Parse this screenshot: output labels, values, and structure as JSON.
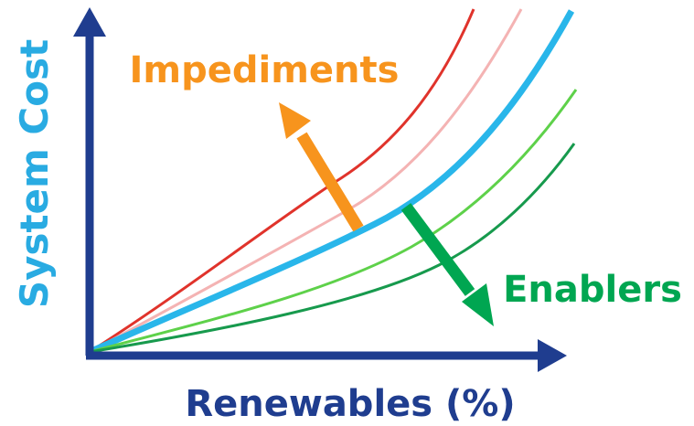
{
  "labels": {
    "y_axis": "System Cost",
    "x_axis": "Renewables (%)",
    "impediments": "Impediments",
    "enablers": "Enablers"
  },
  "colors": {
    "axis": "#1f3d8f",
    "y_label": "#29abe2",
    "impediments": "#f7941d",
    "enablers": "#00a651",
    "curve_red": "#e0332b",
    "curve_pink": "#f4b3b3",
    "curve_blue": "#29b6ea",
    "curve_light_green": "#5ed14a",
    "curve_dark_green": "#179a4d"
  },
  "curves": [
    {
      "id": "curve-red",
      "color_key": "curve_red",
      "weight": "thin"
    },
    {
      "id": "curve-pink",
      "color_key": "curve_pink",
      "weight": "thin"
    },
    {
      "id": "curve-blue-baseline",
      "color_key": "curve_blue",
      "weight": "thick"
    },
    {
      "id": "curve-light-green",
      "color_key": "curve_light_green",
      "weight": "thin"
    },
    {
      "id": "curve-dark-green",
      "color_key": "curve_dark_green",
      "weight": "thin"
    }
  ]
}
